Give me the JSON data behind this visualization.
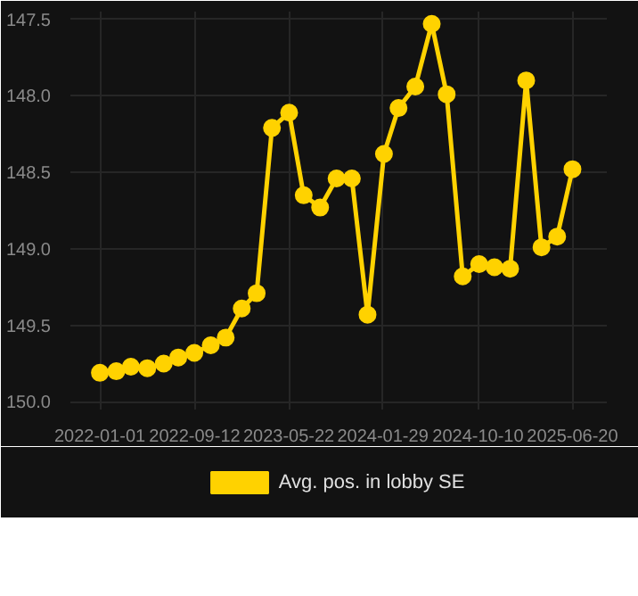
{
  "chart_data": {
    "type": "line",
    "x": [
      "2022-01-01",
      "2022-02-14",
      "2022-03-25",
      "2022-05-08",
      "2022-06-21",
      "2022-07-30",
      "2022-09-11",
      "2022-10-25",
      "2022-12-04",
      "2023-01-16",
      "2023-02-25",
      "2023-04-07",
      "2023-05-23",
      "2023-07-01",
      "2023-08-14",
      "2023-09-27",
      "2023-11-07",
      "2023-12-19",
      "2024-02-01",
      "2024-03-11",
      "2024-04-25",
      "2024-06-08",
      "2024-07-18",
      "2024-08-30",
      "2024-10-13",
      "2024-11-23",
      "2025-01-04",
      "2025-02-16",
      "2025-03-29",
      "2025-05-10",
      "2025-06-20"
    ],
    "series": [
      {
        "name": "Avg. pos. in lobby SE",
        "color": "#ffd200",
        "values": [
          149.81,
          149.8,
          149.77,
          149.78,
          149.75,
          149.71,
          149.68,
          149.63,
          149.58,
          149.39,
          149.29,
          148.21,
          148.11,
          148.65,
          148.73,
          148.54,
          148.54,
          149.43,
          148.38,
          148.08,
          147.94,
          147.53,
          147.99,
          149.18,
          149.1,
          149.12,
          149.13,
          147.9,
          148.99,
          148.92,
          148.48
        ]
      }
    ],
    "xlim": [
      "2021-10-14",
      "2025-09-20"
    ],
    "xticks": [
      "2022-01-01",
      "2022-09-12",
      "2023-05-22",
      "2024-01-29",
      "2024-10-10",
      "2025-06-20"
    ],
    "ylim": [
      150.05,
      147.45
    ],
    "yticks": [
      {
        "value": 147.5,
        "label": "147.5"
      },
      {
        "value": 148.0,
        "label": "148.0"
      },
      {
        "value": 148.5,
        "label": "148.5"
      },
      {
        "value": 149.0,
        "label": "149.0"
      },
      {
        "value": 149.5,
        "label": "149.5"
      },
      {
        "value": 150.0,
        "label": "150.0"
      }
    ],
    "grid": true,
    "legend": "bottom",
    "marker": "circle",
    "line_style": "solid"
  }
}
